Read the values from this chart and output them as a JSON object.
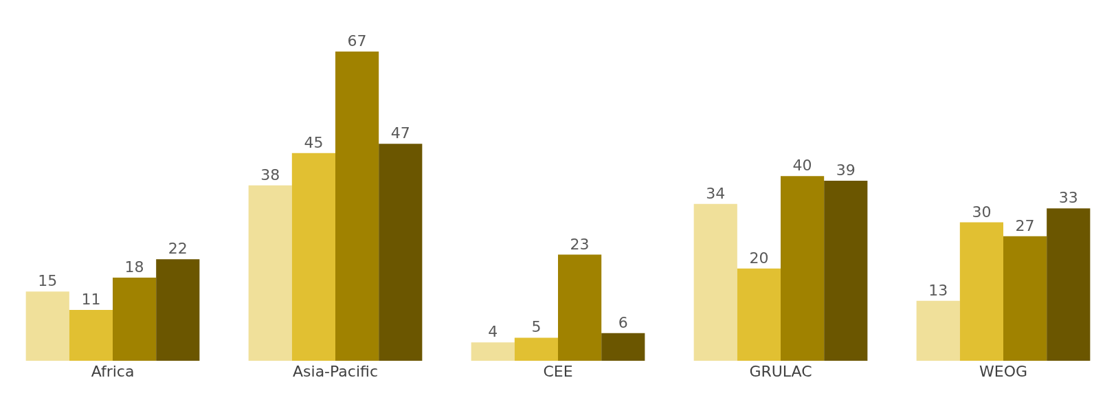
{
  "chart_data": {
    "type": "bar",
    "categories": [
      "Africa",
      "Asia-Pacific",
      "CEE",
      "GRULAC",
      "WEOG"
    ],
    "series": [
      {
        "color": "#f0e09a",
        "values": [
          15,
          38,
          4,
          34,
          13
        ]
      },
      {
        "color": "#e1c032",
        "values": [
          11,
          45,
          5,
          20,
          30
        ]
      },
      {
        "color": "#a08200",
        "values": [
          18,
          67,
          23,
          40,
          27
        ]
      },
      {
        "color": "#6b5600",
        "values": [
          22,
          47,
          6,
          39,
          33
        ]
      }
    ],
    "data_labels": true
  }
}
